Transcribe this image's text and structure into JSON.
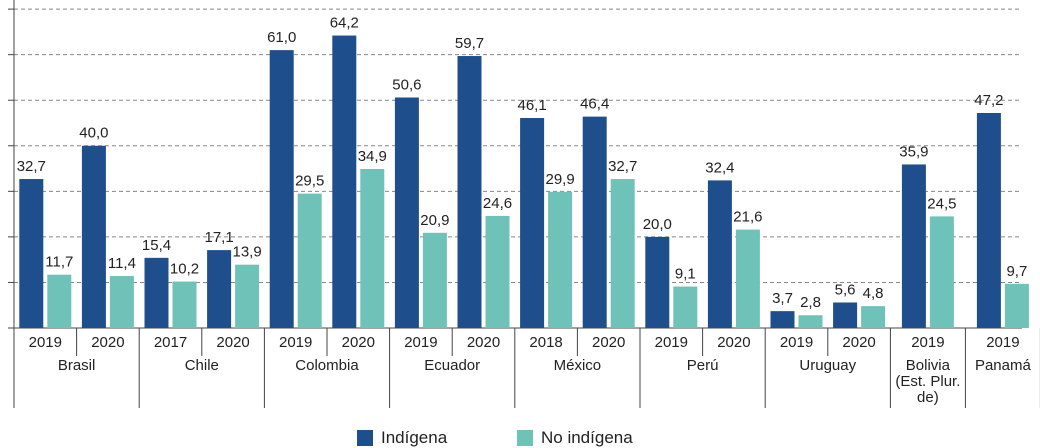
{
  "chart_data": {
    "type": "bar",
    "groups": [
      {
        "name": "Brasil",
        "categories": [
          "2019",
          "2020"
        ]
      },
      {
        "name": "Chile",
        "categories": [
          "2017",
          "2020"
        ]
      },
      {
        "name": "Colombia",
        "categories": [
          "2019",
          "2020"
        ]
      },
      {
        "name": "Ecuador",
        "categories": [
          "2019",
          "2020"
        ]
      },
      {
        "name": "México",
        "categories": [
          "2018",
          "2020"
        ]
      },
      {
        "name": "Perú",
        "categories": [
          "2019",
          "2020"
        ]
      },
      {
        "name": "Uruguay",
        "categories": [
          "2019",
          "2020"
        ]
      },
      {
        "name": "Bolivia (Est. Plur. de)",
        "categories": [
          "2019"
        ]
      },
      {
        "name": "Panamá",
        "categories": [
          "2019"
        ]
      }
    ],
    "series": [
      {
        "name": "Indígena",
        "color": "#1f4e8c",
        "values": [
          32.7,
          40.0,
          15.4,
          17.1,
          61.0,
          64.2,
          50.6,
          59.7,
          46.1,
          46.4,
          20.0,
          32.4,
          3.7,
          5.6,
          35.9,
          47.2
        ],
        "value_labels": [
          "32,7",
          "40,0",
          "15,4",
          "17,1",
          "61,0",
          "64,2",
          "50,6",
          "59,7",
          "46,1",
          "46,4",
          "20,0",
          "32,4",
          "3,7",
          "5,6",
          "35,9",
          "47,2"
        ]
      },
      {
        "name": "No indígena",
        "color": "#6fc2b8",
        "values": [
          11.7,
          11.4,
          10.2,
          13.9,
          29.5,
          34.9,
          20.9,
          24.6,
          29.9,
          32.7,
          9.1,
          21.6,
          2.8,
          4.8,
          24.5,
          9.7
        ],
        "value_labels": [
          "11,7",
          "11,4",
          "10,2",
          "13,9",
          "29,5",
          "34,9",
          "20,9",
          "24,6",
          "29,9",
          "32,7",
          "9,1",
          "21,6",
          "2,8",
          "4,8",
          "24,5",
          "9,7"
        ]
      }
    ],
    "ylim": [
      0,
      72
    ],
    "yticks": [
      0,
      10,
      20,
      30,
      40,
      50,
      60,
      70
    ],
    "grid": true
  }
}
